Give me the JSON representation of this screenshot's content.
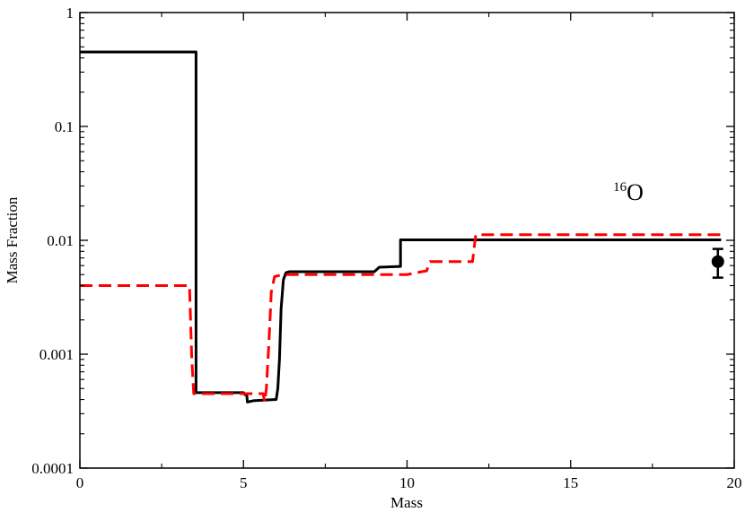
{
  "chart_data": {
    "type": "line",
    "title": "",
    "xlabel": "Mass",
    "ylabel": "Mass Fraction",
    "xlim": [
      0,
      20
    ],
    "ylim": [
      0.0001,
      1
    ],
    "yscale": "log",
    "grid": false,
    "x_ticks": [
      0,
      5,
      10,
      15,
      20
    ],
    "x_tick_labels": [
      "0",
      "5",
      "10",
      "15",
      "20"
    ],
    "y_ticks": [
      0.0001,
      0.001,
      0.01,
      0.1,
      1
    ],
    "y_tick_labels": [
      "0.0001",
      "0.001",
      "0.01",
      "0.1",
      "1"
    ],
    "annotation": {
      "superscript": "16",
      "text": "O",
      "x": 16.3,
      "y": 0.027
    },
    "series": [
      {
        "color": "#000000",
        "dash": "solid",
        "points": [
          [
            0,
            0.45
          ],
          [
            3.55,
            0.45
          ],
          [
            3.55,
            0.00046
          ],
          [
            5.0,
            0.00046
          ],
          [
            5.05,
            0.00044
          ],
          [
            5.1,
            0.00044
          ],
          [
            5.12,
            0.00038
          ],
          [
            5.3,
            0.00039
          ],
          [
            6.0,
            0.0004
          ],
          [
            6.05,
            0.0005
          ],
          [
            6.1,
            0.0009
          ],
          [
            6.15,
            0.0025
          ],
          [
            6.22,
            0.0045
          ],
          [
            6.3,
            0.0052
          ],
          [
            6.4,
            0.0053
          ],
          [
            9.0,
            0.0053
          ],
          [
            9.15,
            0.0058
          ],
          [
            9.8,
            0.0059
          ],
          [
            9.8,
            0.0101
          ],
          [
            19.6,
            0.0101
          ]
        ]
      },
      {
        "color": "#ff0000",
        "dash": "dashed",
        "points": [
          [
            0,
            0.004
          ],
          [
            3.35,
            0.004
          ],
          [
            3.42,
            0.0009
          ],
          [
            3.48,
            0.00045
          ],
          [
            5.3,
            0.00045
          ],
          [
            5.6,
            0.00045
          ],
          [
            5.65,
            0.00038
          ],
          [
            5.7,
            0.0005
          ],
          [
            5.78,
            0.0013
          ],
          [
            5.85,
            0.0035
          ],
          [
            5.95,
            0.0048
          ],
          [
            6.2,
            0.005
          ],
          [
            10.0,
            0.005
          ],
          [
            10.3,
            0.0052
          ],
          [
            10.6,
            0.0054
          ],
          [
            10.7,
            0.0065
          ],
          [
            12.0,
            0.0065
          ],
          [
            12.1,
            0.0112
          ],
          [
            19.6,
            0.0112
          ]
        ]
      }
    ],
    "observed_point": {
      "x": 19.5,
      "y": 0.0065,
      "y_low": 0.0047,
      "y_high": 0.0084,
      "color": "#000000"
    }
  }
}
